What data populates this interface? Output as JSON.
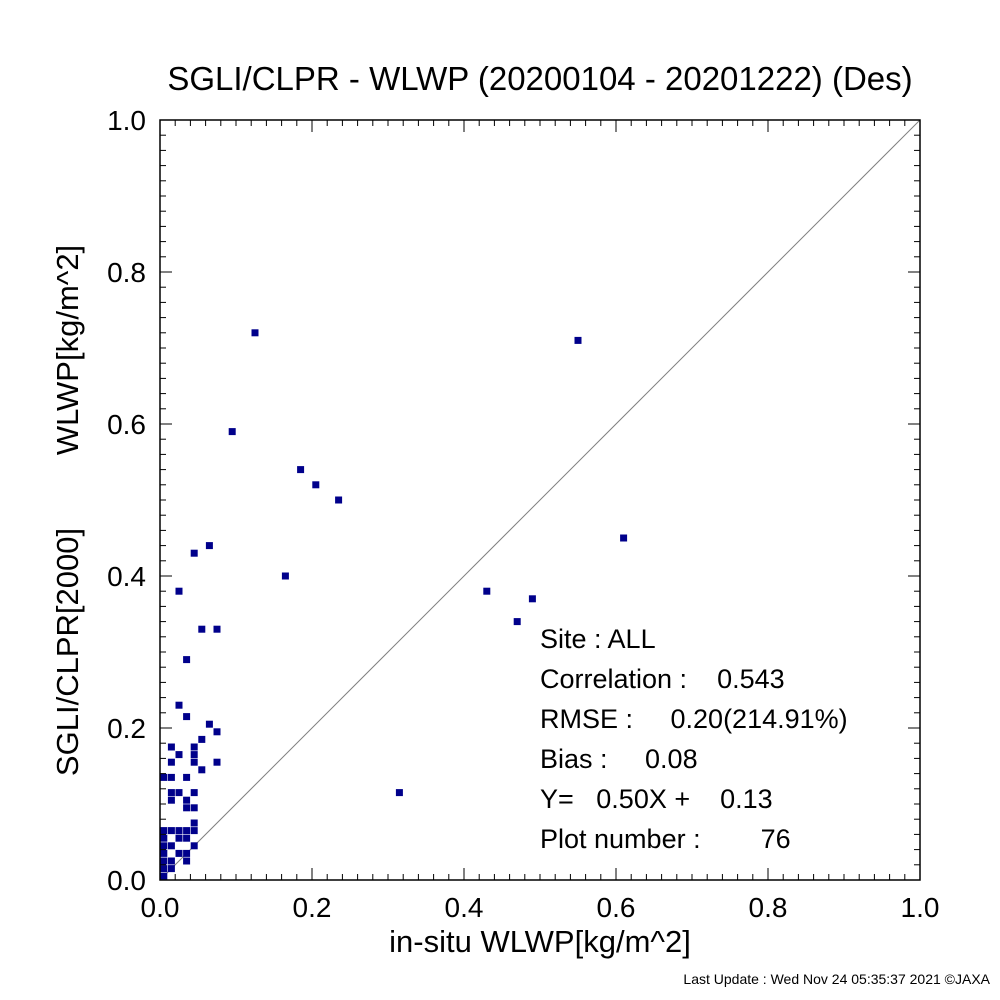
{
  "chart_data": {
    "type": "scatter",
    "title": "SGLI/CLPR - WLWP (20200104 - 20201222) (Des)",
    "xlabel": "in-situ WLWP[kg/m^2]",
    "ylabel_lines": [
      "SGLI/CLPR[2000]",
      "WLWP[kg/m^2]"
    ],
    "xlim": [
      0.0,
      1.0
    ],
    "ylim": [
      0.0,
      1.0
    ],
    "xticks": [
      "0.0",
      "0.2",
      "0.4",
      "0.6",
      "0.8",
      "1.0"
    ],
    "yticks": [
      "0.0",
      "0.2",
      "0.4",
      "0.6",
      "0.8",
      "1.0"
    ],
    "xtick_values": [
      0.0,
      0.2,
      0.4,
      0.6,
      0.8,
      1.0
    ],
    "ytick_values": [
      0.0,
      0.2,
      0.4,
      0.6,
      0.8,
      1.0
    ],
    "grid": false,
    "reference_line": "1:1",
    "marker_color": "#00008b",
    "line_color": "#808080",
    "points": [
      [
        0.125,
        0.72
      ],
      [
        0.55,
        0.71
      ],
      [
        0.095,
        0.59
      ],
      [
        0.61,
        0.45
      ],
      [
        0.185,
        0.54
      ],
      [
        0.205,
        0.52
      ],
      [
        0.235,
        0.5
      ],
      [
        0.165,
        0.4
      ],
      [
        0.43,
        0.38
      ],
      [
        0.49,
        0.37
      ],
      [
        0.47,
        0.34
      ],
      [
        0.315,
        0.115
      ],
      [
        0.065,
        0.44
      ],
      [
        0.045,
        0.43
      ],
      [
        0.025,
        0.38
      ],
      [
        0.055,
        0.33
      ],
      [
        0.075,
        0.33
      ],
      [
        0.035,
        0.29
      ],
      [
        0.025,
        0.23
      ],
      [
        0.035,
        0.215
      ],
      [
        0.065,
        0.205
      ],
      [
        0.075,
        0.195
      ],
      [
        0.055,
        0.185
      ],
      [
        0.015,
        0.175
      ],
      [
        0.045,
        0.175
      ],
      [
        0.025,
        0.165
      ],
      [
        0.045,
        0.165
      ],
      [
        0.015,
        0.155
      ],
      [
        0.045,
        0.155
      ],
      [
        0.075,
        0.155
      ],
      [
        0.055,
        0.145
      ],
      [
        0.005,
        0.135
      ],
      [
        0.015,
        0.135
      ],
      [
        0.035,
        0.135
      ],
      [
        0.015,
        0.115
      ],
      [
        0.025,
        0.115
      ],
      [
        0.045,
        0.115
      ],
      [
        0.015,
        0.105
      ],
      [
        0.035,
        0.105
      ],
      [
        0.035,
        0.095
      ],
      [
        0.045,
        0.095
      ],
      [
        0.045,
        0.075
      ],
      [
        0.005,
        0.065
      ],
      [
        0.015,
        0.065
      ],
      [
        0.025,
        0.065
      ],
      [
        0.035,
        0.065
      ],
      [
        0.045,
        0.065
      ],
      [
        0.005,
        0.055
      ],
      [
        0.025,
        0.055
      ],
      [
        0.035,
        0.055
      ],
      [
        0.005,
        0.045
      ],
      [
        0.015,
        0.045
      ],
      [
        0.045,
        0.045
      ],
      [
        0.005,
        0.035
      ],
      [
        0.025,
        0.035
      ],
      [
        0.035,
        0.035
      ],
      [
        0.005,
        0.025
      ],
      [
        0.015,
        0.025
      ],
      [
        0.035,
        0.025
      ],
      [
        0.005,
        0.015
      ],
      [
        0.015,
        0.015
      ],
      [
        0.005,
        0.005
      ]
    ]
  },
  "stats": {
    "site": "Site : ALL",
    "correlation": "Correlation :    0.543",
    "rmse": "RMSE :     0.20(214.91%)",
    "bias": "Bias :     0.08",
    "regression": "Y=   0.50X +    0.13",
    "plot_number": "Plot number :        76"
  },
  "footer": "Last Update : Wed Nov 24 05:35:37 2021  ©JAXA"
}
